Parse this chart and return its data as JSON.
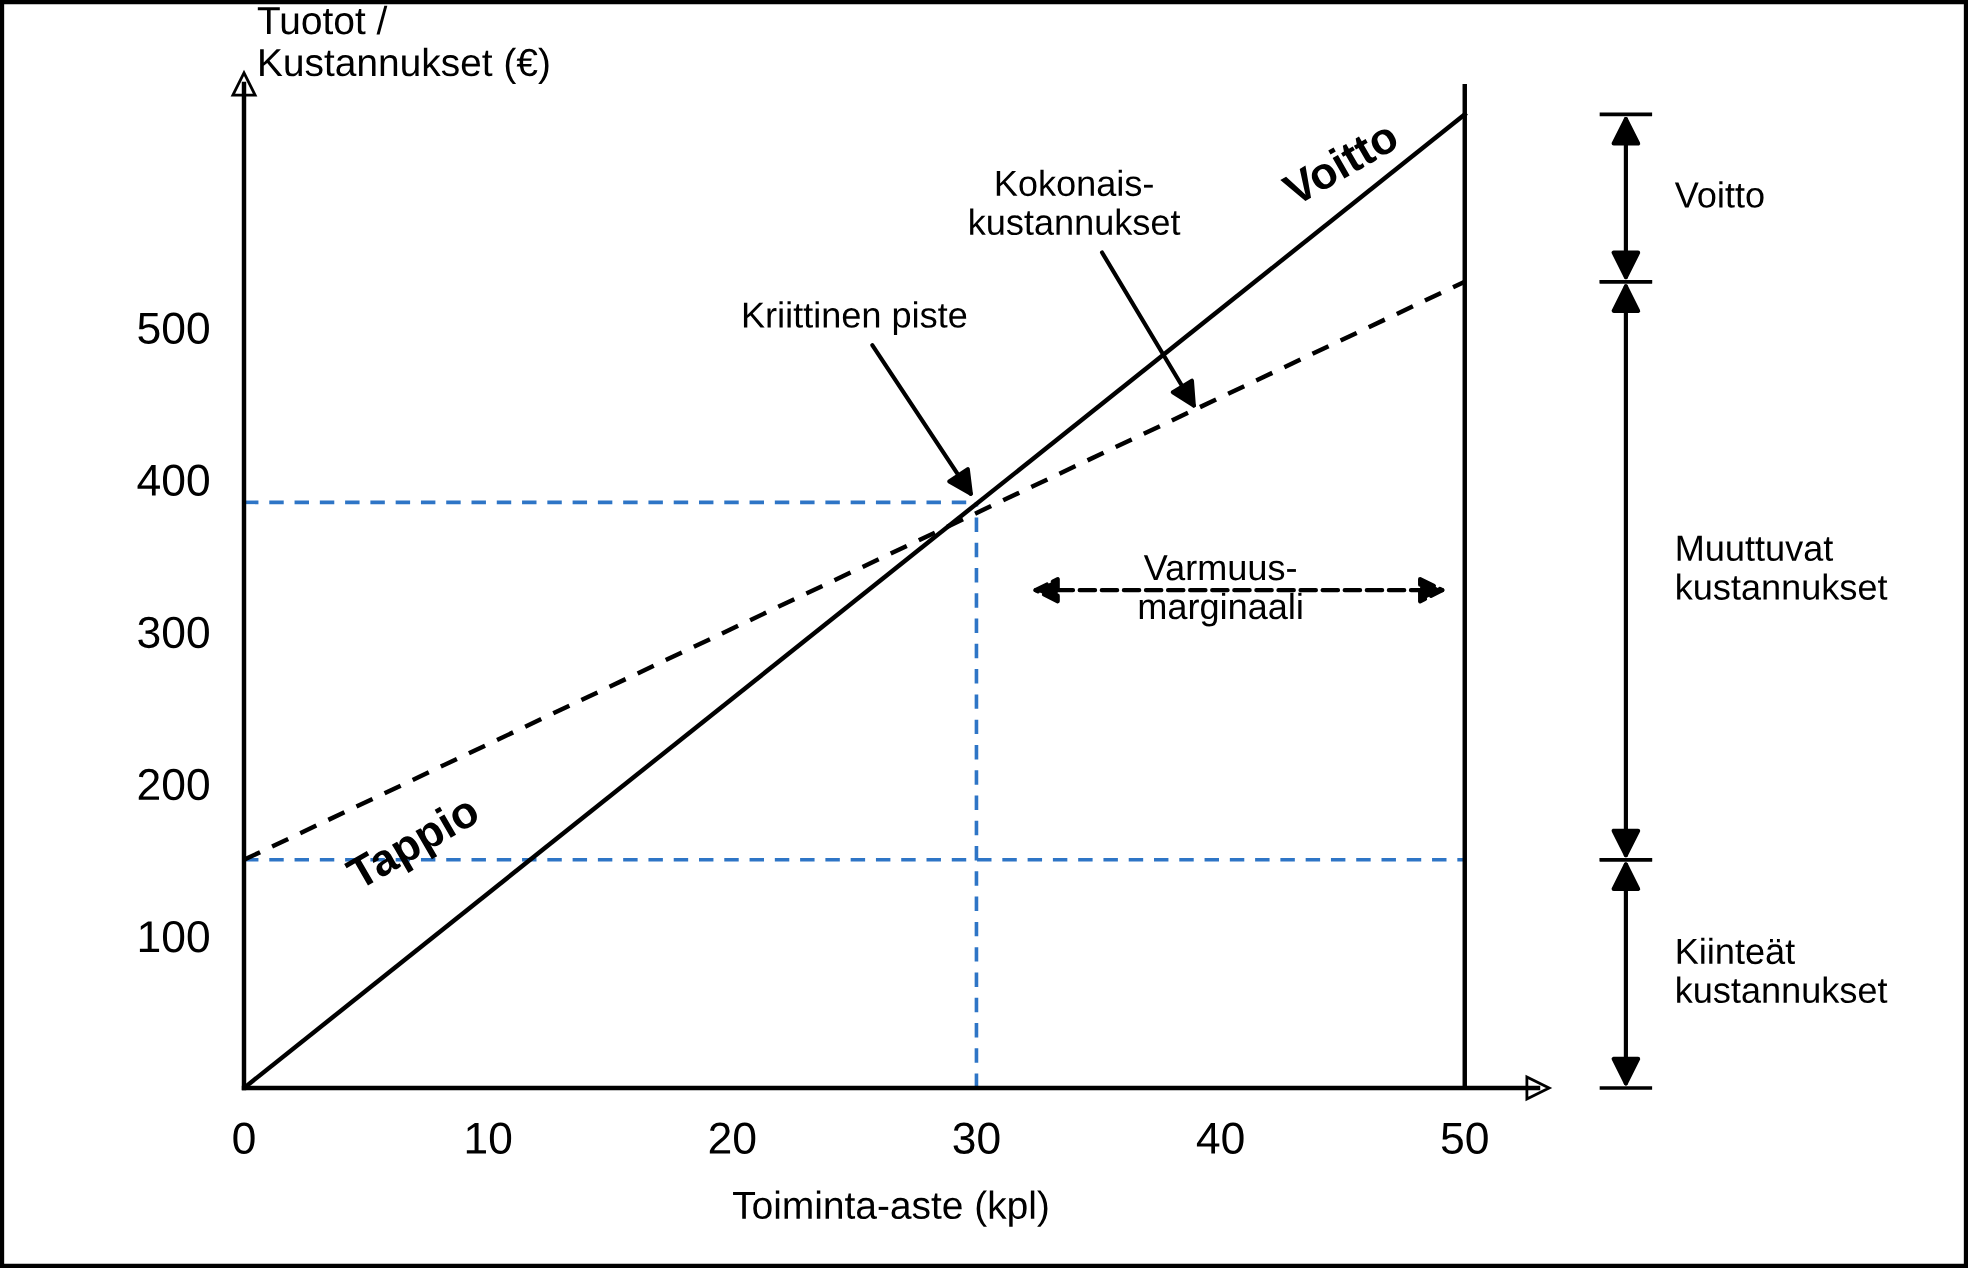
{
  "chart_data": {
    "type": "line",
    "xlabel": "Toiminta-aste (kpl)",
    "ylabel": "Tuotot /\nKustannukset (€)",
    "x": [
      0,
      50
    ],
    "xlim": [
      0,
      53
    ],
    "ylim": [
      0,
      660
    ],
    "xticks": [
      0,
      10,
      20,
      30,
      40,
      50
    ],
    "yticks": [
      100,
      200,
      300,
      400,
      500
    ],
    "series": [
      {
        "color": "#000000",
        "values": [
          0,
          640
        ],
        "line_style": "solid"
      },
      {
        "color": "#000000",
        "values": [
          150,
          530
        ],
        "line_style": "dashed"
      },
      {
        "color": "#2e75c6",
        "x": [
          0,
          30
        ],
        "values": [
          385,
          385
        ],
        "line_style": "dashed"
      },
      {
        "color": "#2e75c6",
        "x": [
          0,
          50
        ],
        "values": [
          150,
          150
        ],
        "line_style": "dashed"
      },
      {
        "color": "#2e75c6",
        "x": [
          30,
          30
        ],
        "values": [
          0,
          385
        ],
        "line_style": "dashed"
      }
    ],
    "ref_lines": [
      {
        "axis": "x",
        "value": 50,
        "color": "#000000",
        "line_style": "solid"
      }
    ],
    "annotations": [
      "Voitto",
      "Tappio",
      {
        "text": "Kriittinen piste",
        "x": 30,
        "y": 385
      },
      {
        "text": "Kokonais-\nkustannukset",
        "x": 39,
        "y": 446
      },
      "Varmuus-\nmarginaali",
      {
        "text": "Voitto"
      },
      {
        "text": "Muuttuvat\nkustannukset"
      },
      {
        "text": "Kiinteät\nkustannukset"
      }
    ],
    "grid": false,
    "marker": "none"
  }
}
